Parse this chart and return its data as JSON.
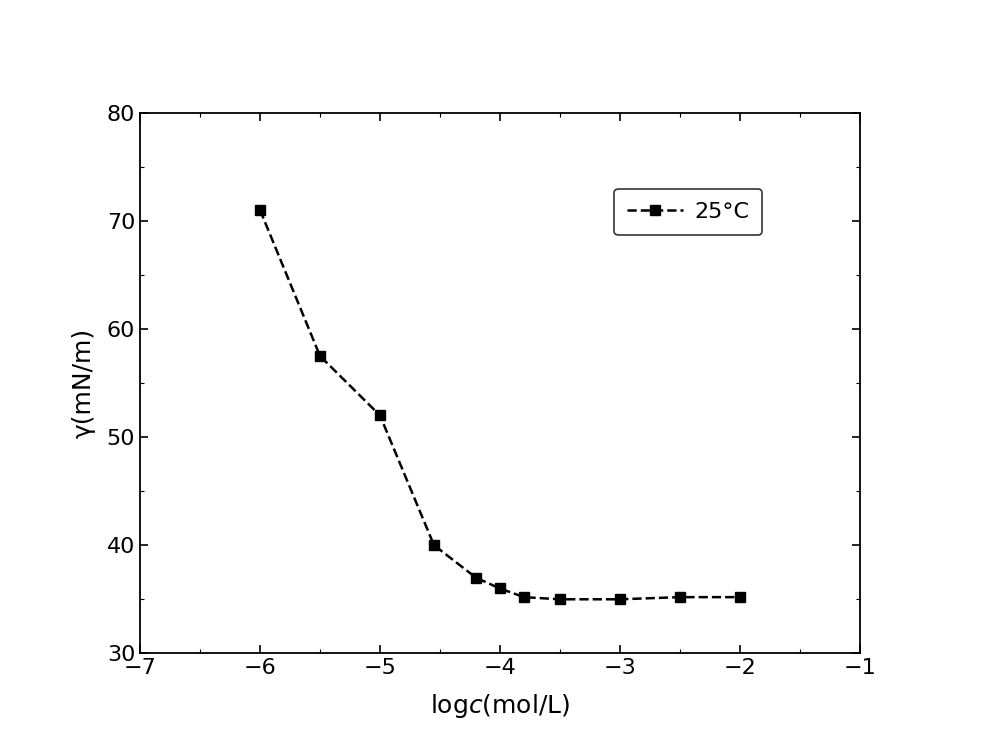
{
  "x": [
    -6,
    -5.5,
    -5,
    -4.55,
    -4.2,
    -4.0,
    -3.8,
    -3.5,
    -3.0,
    -2.5,
    -2.0
  ],
  "y": [
    71,
    57.5,
    52,
    40,
    37,
    36,
    35.2,
    35.0,
    35.0,
    35.2,
    35.2
  ],
  "ylabel": "γ(mN/m)",
  "xlim": [
    -7,
    -1
  ],
  "ylim": [
    30,
    80
  ],
  "xticks": [
    -7,
    -6,
    -5,
    -4,
    -3,
    -2,
    -1
  ],
  "yticks": [
    30,
    40,
    50,
    60,
    70,
    80
  ],
  "legend_label": "25°C",
  "line_color": "#000000",
  "marker": "s",
  "markersize": 7,
  "linewidth": 1.8,
  "background_color": "#ffffff",
  "figure_bg": "#ffffff",
  "tick_fontsize": 16,
  "label_fontsize": 18,
  "legend_fontsize": 16
}
